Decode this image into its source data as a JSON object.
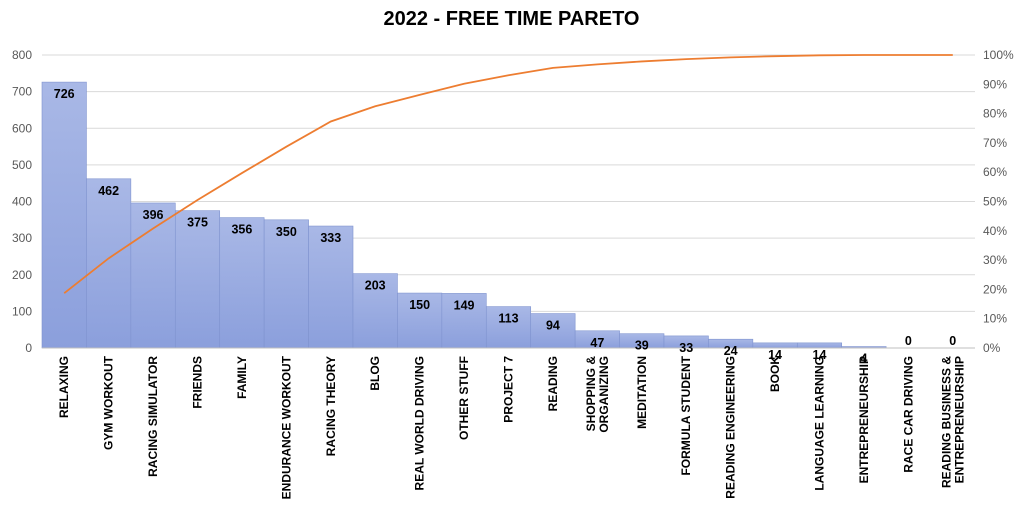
{
  "chart_data": {
    "type": "bar",
    "title": "2022 - FREE TIME PARETO",
    "categories": [
      [
        "RELAXING"
      ],
      [
        "GYM WORKOUT"
      ],
      [
        "RACING SIMULATOR"
      ],
      [
        "FRIENDS"
      ],
      [
        "FAMILY"
      ],
      [
        "ENDURANCE WORKOUT"
      ],
      [
        "RACING THEORY"
      ],
      [
        "BLOG"
      ],
      [
        "REAL WORLD DRIVING"
      ],
      [
        "OTHER STUFF"
      ],
      [
        "PROJECT 7"
      ],
      [
        "READING"
      ],
      [
        "SHOPPING &",
        "ORGANIZING"
      ],
      [
        "MEDITATION"
      ],
      [
        "FORMULA STUDENT"
      ],
      [
        "READING ENGINEERING"
      ],
      [
        "BOOK"
      ],
      [
        "LANGUAGE LEARNING"
      ],
      [
        "ENTREPRENEURSHIP"
      ],
      [
        "RACE CAR DRIVING"
      ],
      [
        "READING BUSINESS &",
        "ENTREPRENEURSHIP"
      ]
    ],
    "series": [
      {
        "type": "bar",
        "values": [
          726,
          462,
          396,
          375,
          356,
          350,
          333,
          203,
          150,
          149,
          113,
          94,
          47,
          39,
          33,
          24,
          14,
          14,
          4,
          0,
          0
        ],
        "color": "#8fa2dc"
      },
      {
        "type": "line",
        "axis": "right",
        "values": [
          18.7,
          30.6,
          40.8,
          50.5,
          59.7,
          68.7,
          77.3,
          82.5,
          86.4,
          90.2,
          93.1,
          95.6,
          96.8,
          97.8,
          98.6,
          99.2,
          99.6,
          99.9,
          100,
          100,
          100
        ],
        "color": "#ed7d31"
      }
    ],
    "ylim": [
      0,
      800
    ],
    "yticks": [
      "0",
      "100",
      "200",
      "300",
      "400",
      "500",
      "600",
      "700",
      "800"
    ],
    "y2lim": [
      0,
      100
    ],
    "y2ticks": [
      "0%",
      "10%",
      "20%",
      "30%",
      "40%",
      "50%",
      "60%",
      "70%",
      "80%",
      "90%",
      "100%"
    ],
    "grid": true
  }
}
